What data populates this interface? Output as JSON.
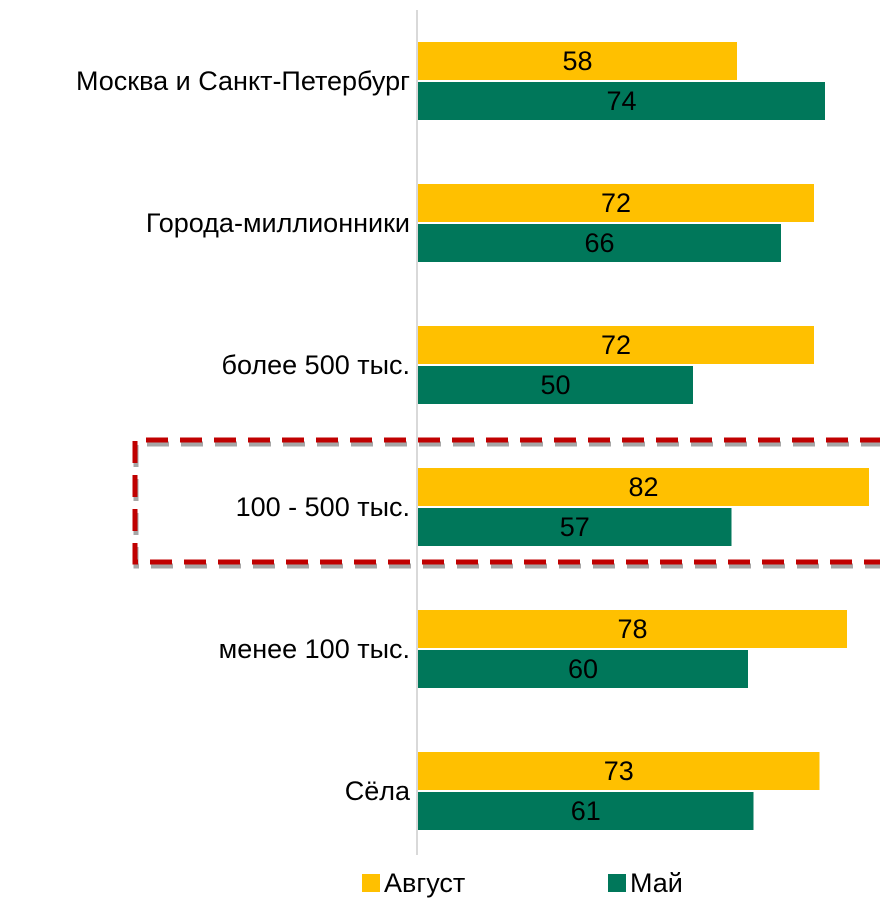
{
  "chart_data": {
    "type": "barh",
    "categories": [
      "Москва и Санкт-Петербург",
      "Города-миллионники",
      "более 500 тыс.",
      "100 - 500 тыс.",
      "менее 100 тыс.",
      "Сёла"
    ],
    "series": [
      {
        "name": "Август",
        "color": "#ffc000",
        "values": [
          58,
          72,
          72,
          82,
          78,
          73
        ]
      },
      {
        "name": "Май",
        "color": "#00775a",
        "values": [
          74,
          66,
          50,
          57,
          60,
          61
        ]
      }
    ],
    "xlim": [
      0,
      84
    ]
  }
}
